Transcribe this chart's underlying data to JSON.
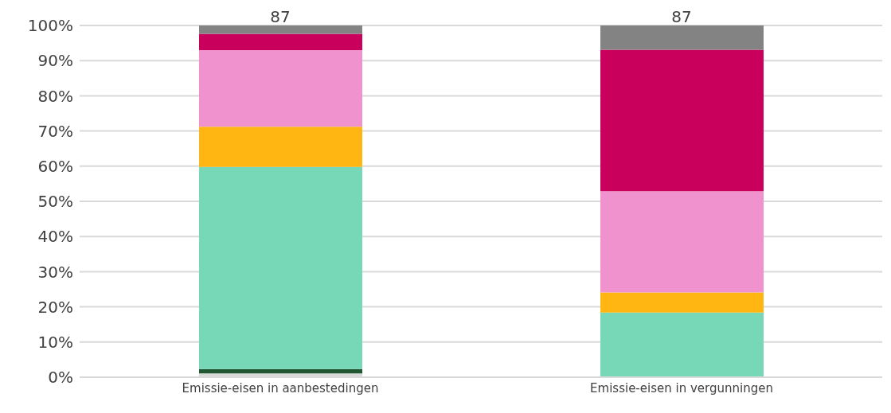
{
  "chart_data": {
    "type": "bar",
    "stacked": true,
    "categories": [
      "Emissie-eisen in aanbestedingen",
      "Emissie-eisen in vergunningen"
    ],
    "series": [
      {
        "color": "#d9d9d9",
        "values": [
          1.1,
          0
        ]
      },
      {
        "color": "#215732",
        "values": [
          1.2,
          0
        ]
      },
      {
        "color": "#76d8b7",
        "values": [
          57.5,
          18.4
        ]
      },
      {
        "color": "#ffb612",
        "values": [
          11.4,
          5.7
        ]
      },
      {
        "color": "#f092cd",
        "values": [
          21.8,
          28.8
        ]
      },
      {
        "color": "#ca005d",
        "values": [
          4.6,
          40.2
        ]
      },
      {
        "color": "#838383",
        "values": [
          2.4,
          6.9
        ]
      }
    ],
    "ylim": [
      0,
      100
    ],
    "yticks": [
      {
        "value": 0,
        "label": "0%"
      },
      {
        "value": 10,
        "label": "10%"
      },
      {
        "value": 20,
        "label": "20%"
      },
      {
        "value": 30,
        "label": "30%"
      },
      {
        "value": 40,
        "label": "40%"
      },
      {
        "value": 50,
        "label": "50%"
      },
      {
        "value": 60,
        "label": "60%"
      },
      {
        "value": 70,
        "label": "70%"
      },
      {
        "value": 80,
        "label": "80%"
      },
      {
        "value": 90,
        "label": "90%"
      },
      {
        "value": 100,
        "label": "100%"
      }
    ],
    "grid": "y",
    "annotations": [
      {
        "text": "87",
        "x": "Emissie-eisen in aanbestedingen",
        "y": 100
      },
      {
        "text": "87",
        "x": "Emissie-eisen in vergunningen",
        "y": 100
      }
    ]
  }
}
